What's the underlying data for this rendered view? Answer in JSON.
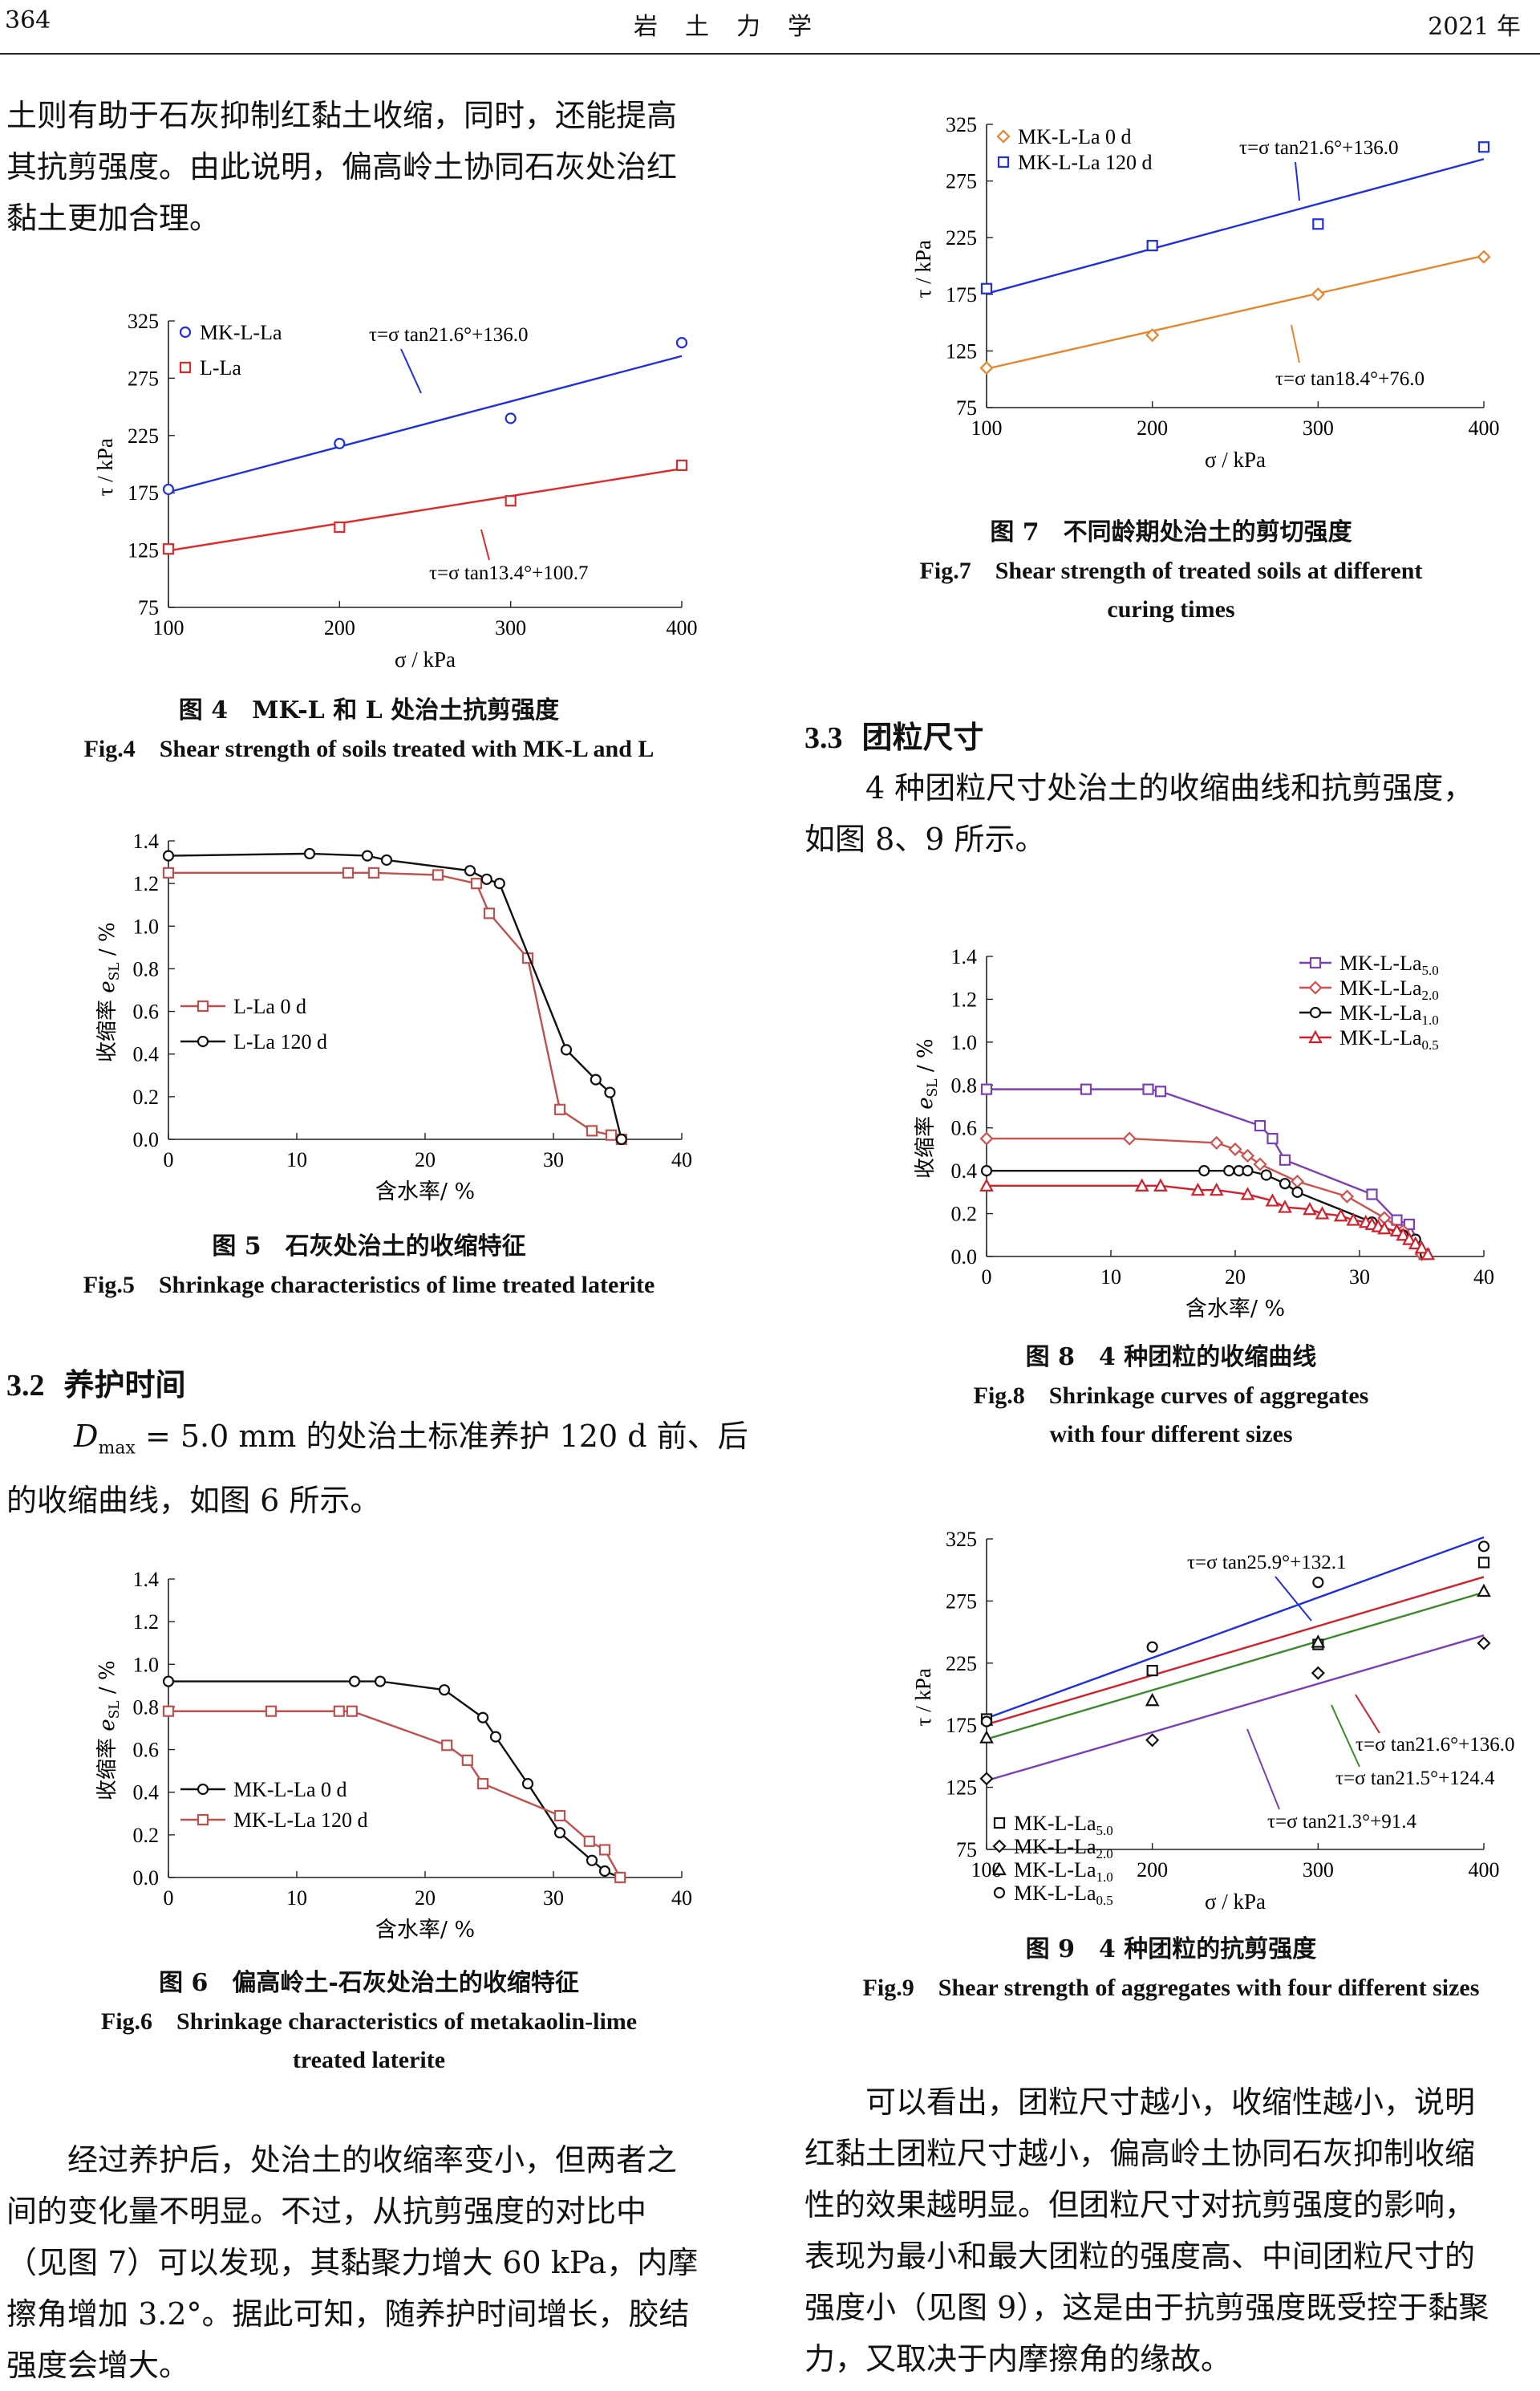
{
  "header": {
    "page_number": "364",
    "journal": "岩　土　力　学",
    "year": "2021 年"
  },
  "paragraphs": {
    "p1": [
      "土则有助于石灰抑制红黏土收缩，同时，还能提高",
      "其抗剪强度。由此说明，偏高岭土协同石灰处治红",
      "黏土更加合理。"
    ],
    "p2": [
      "= 5.0 mm 的处治土标准养护 120 d 前、后",
      "的收缩曲线，如图 6 所示。"
    ],
    "p2_prefix": "D",
    "p2_sub": "max",
    "p3": [
      "经过养护后，处治土的收缩率变小，但两者之",
      "间的变化量不明显。不过，从抗剪强度的对比中",
      "（见图 7）可以发现，其黏聚力增大 60 kPa，内摩",
      "擦角增加 3.2°。据此可知，随养护时间增长，胶结",
      "强度会增大。"
    ],
    "p4": [
      "4 种团粒尺寸处治土的收缩曲线和抗剪强度，",
      "如图 8、9 所示。"
    ],
    "p5": [
      "可以看出，团粒尺寸越小，收缩性越小，说明",
      "红黏土团粒尺寸越小，偏高岭土协同石灰抑制收缩",
      "性的效果越明显。但团粒尺寸对抗剪强度的影响，",
      "表现为最小和最大团粒的强度高、中间团粒尺寸的",
      "强度小（见图 9），这是由于抗剪强度既受控于黏聚",
      "力，又取决于内摩擦角的缘故。"
    ]
  },
  "sections": {
    "s32": {
      "number": "3.2",
      "title": "养护时间"
    },
    "s33": {
      "number": "3.3",
      "title": "团粒尺寸"
    }
  },
  "captions": {
    "fig4": {
      "zh": "图 4　MK-L 和 L 处治土抗剪强度",
      "en": [
        "Fig.4　Shear strength of soils treated with MK-L and L"
      ]
    },
    "fig5": {
      "zh": "图 5　石灰处治土的收缩特征",
      "en": [
        "Fig.5　Shrinkage characteristics of lime treated laterite"
      ]
    },
    "fig6": {
      "zh": "图 6　偏高岭土-石灰处治土的收缩特征",
      "en": [
        "Fig.6　Shrinkage characteristics of metakaolin-lime",
        "treated laterite"
      ]
    },
    "fig7": {
      "zh": "图 7　不同龄期处治土的剪切强度",
      "en": [
        "Fig.7　Shear strength of treated soils at different",
        "curing times"
      ]
    },
    "fig8": {
      "zh": "图 8　4 种团粒的收缩曲线",
      "en": [
        "Fig.8　Shrinkage curves of aggregates",
        "with four different sizes"
      ]
    },
    "fig9": {
      "zh": "图 9　4 种团粒的抗剪强度",
      "en": [
        "Fig.9　Shear strength of aggregates with four different sizes"
      ]
    }
  },
  "chart_data": [
    {
      "id": "fig4",
      "type": "scatter",
      "xlabel": "σ / kPa",
      "ylabel": "τ / kPa",
      "xlim": [
        100,
        400
      ],
      "ylim": [
        75,
        325
      ],
      "xticks": [
        100,
        200,
        300,
        400
      ],
      "yticks": [
        75,
        125,
        175,
        225,
        275,
        325
      ],
      "legend": "top-left",
      "series": [
        {
          "name": "MK-L-La",
          "marker": "circle",
          "color": "#1f2fe0",
          "x": [
            100,
            200,
            300,
            400
          ],
          "y": [
            178,
            218,
            240,
            306
          ],
          "fit": {
            "label": "τ=σ tan21.6°+136.0",
            "slope_deg": 21.6,
            "intercept": 136.0
          }
        },
        {
          "name": "L-La",
          "marker": "square",
          "color": "#e02a2a",
          "x": [
            100,
            200,
            300,
            400
          ],
          "y": [
            126,
            145,
            168,
            199
          ],
          "fit": {
            "label": "τ=σ tan13.4°+100.7",
            "slope_deg": 13.4,
            "intercept": 100.7
          }
        }
      ]
    },
    {
      "id": "fig5",
      "type": "line",
      "xlabel": "含水率/ %",
      "ylabel": "收缩率 e_SL / %",
      "xlim": [
        0,
        40
      ],
      "ylim": [
        0,
        1.4
      ],
      "xticks": [
        0,
        10,
        20,
        30,
        40
      ],
      "yticks": [
        0.0,
        0.2,
        0.4,
        0.6,
        0.8,
        1.0,
        1.2,
        1.4
      ],
      "legend": "middle-left",
      "series": [
        {
          "name": "L-La 0 d",
          "marker": "square",
          "color": "#c0504d",
          "x": [
            0,
            14,
            16,
            21,
            24,
            25,
            28,
            30.5,
            33,
            34.5,
            35.3
          ],
          "y": [
            1.25,
            1.25,
            1.25,
            1.24,
            1.2,
            1.06,
            0.85,
            0.14,
            0.04,
            0.02,
            0.0
          ]
        },
        {
          "name": "L-La 120 d",
          "marker": "circle",
          "color": "#111111",
          "x": [
            0,
            11,
            15.5,
            17,
            23.5,
            24.8,
            25.8,
            31,
            33.3,
            34.4,
            35.3
          ],
          "y": [
            1.33,
            1.34,
            1.33,
            1.31,
            1.26,
            1.22,
            1.2,
            0.42,
            0.28,
            0.22,
            0.0
          ]
        }
      ]
    },
    {
      "id": "fig6",
      "type": "line",
      "xlabel": "含水率/ %",
      "ylabel": "收缩率 e_SL / %",
      "xlim": [
        0,
        40
      ],
      "ylim": [
        0,
        1.4
      ],
      "xticks": [
        0,
        10,
        20,
        30,
        40
      ],
      "yticks": [
        0.0,
        0.2,
        0.4,
        0.6,
        0.8,
        1.0,
        1.2,
        1.4
      ],
      "legend": "bottom-left",
      "series": [
        {
          "name": "MK-L-La 0 d",
          "marker": "circle",
          "color": "#111111",
          "x": [
            0,
            14.5,
            16.5,
            21.5,
            24.5,
            25.5,
            28,
            30.5,
            33,
            34,
            35.2
          ],
          "y": [
            0.92,
            0.92,
            0.92,
            0.88,
            0.75,
            0.66,
            0.44,
            0.21,
            0.08,
            0.03,
            0.0
          ]
        },
        {
          "name": "MK-L-La 120 d",
          "marker": "square",
          "color": "#c0504d",
          "x": [
            0,
            8,
            13.3,
            14.3,
            21.7,
            23.3,
            24.5,
            30.5,
            32.8,
            34,
            35.2
          ],
          "y": [
            0.78,
            0.78,
            0.78,
            0.78,
            0.62,
            0.55,
            0.44,
            0.29,
            0.17,
            0.13,
            0.0
          ]
        }
      ]
    },
    {
      "id": "fig7",
      "type": "scatter",
      "xlabel": "σ / kPa",
      "ylabel": "τ / kPa",
      "xlim": [
        100,
        400
      ],
      "ylim": [
        75,
        325
      ],
      "xticks": [
        100,
        200,
        300,
        400
      ],
      "yticks": [
        75,
        125,
        175,
        225,
        275,
        325
      ],
      "legend": "top-left",
      "series": [
        {
          "name": "MK-L-La 0 d",
          "marker": "diamond",
          "color": "#e8852a",
          "x": [
            100,
            200,
            300,
            400
          ],
          "y": [
            110,
            139,
            175,
            208
          ],
          "fit": {
            "label": "τ=σ tan18.4°+76.0",
            "slope_deg": 18.4,
            "intercept": 76.0
          }
        },
        {
          "name": "MK-L-La 120 d",
          "marker": "square",
          "color": "#1f2fe0",
          "x": [
            100,
            200,
            300,
            400
          ],
          "y": [
            180,
            218,
            237,
            305
          ],
          "fit": {
            "label": "τ=σ tan21.6°+136.0",
            "slope_deg": 21.6,
            "intercept": 136.0
          }
        }
      ]
    },
    {
      "id": "fig8",
      "type": "line",
      "xlabel": "含水率/ %",
      "ylabel": "收缩率 e_SL / %",
      "xlim": [
        0,
        40
      ],
      "ylim": [
        0,
        1.4
      ],
      "xticks": [
        0,
        10,
        20,
        30,
        40
      ],
      "yticks": [
        0.0,
        0.2,
        0.4,
        0.6,
        0.8,
        1.0,
        1.2,
        1.4
      ],
      "legend": "top-right",
      "series": [
        {
          "name": "MK-L-La",
          "subscript": "5.0",
          "marker": "square",
          "color": "#7b3fb5",
          "x": [
            0,
            8,
            13,
            14,
            22,
            23,
            24,
            31,
            33,
            34,
            35.2
          ],
          "y": [
            0.78,
            0.78,
            0.78,
            0.77,
            0.61,
            0.55,
            0.45,
            0.29,
            0.17,
            0.15,
            0.01
          ]
        },
        {
          "name": "MK-L-La",
          "subscript": "2.0",
          "marker": "diamond",
          "color": "#d0504d",
          "x": [
            0,
            11.5,
            18.5,
            20,
            21,
            22,
            25,
            29,
            32,
            33.5,
            35
          ],
          "y": [
            0.55,
            0.55,
            0.53,
            0.5,
            0.47,
            0.43,
            0.35,
            0.28,
            0.18,
            0.12,
            0.01
          ]
        },
        {
          "name": "MK-L-La",
          "subscript": "1.0",
          "marker": "circle",
          "color": "#111111",
          "x": [
            0,
            17.5,
            19.5,
            20.3,
            21,
            22.5,
            24,
            25,
            31,
            33.5,
            34.5,
            35.3
          ],
          "y": [
            0.4,
            0.4,
            0.4,
            0.4,
            0.4,
            0.38,
            0.34,
            0.3,
            0.16,
            0.1,
            0.08,
            0.01
          ]
        },
        {
          "name": "MK-L-La",
          "subscript": "0.5",
          "marker": "triangle",
          "color": "#d0202a",
          "x": [
            0,
            12.5,
            14,
            17,
            18.5,
            21,
            23,
            24,
            26,
            27,
            28.5,
            29.5,
            30.5,
            31,
            31.5,
            32,
            33,
            33.5,
            34,
            34.5,
            35,
            35.5
          ],
          "y": [
            0.33,
            0.33,
            0.33,
            0.31,
            0.31,
            0.29,
            0.26,
            0.23,
            0.22,
            0.2,
            0.19,
            0.17,
            0.16,
            0.15,
            0.14,
            0.13,
            0.12,
            0.1,
            0.08,
            0.06,
            0.04,
            0.01
          ]
        }
      ]
    },
    {
      "id": "fig9",
      "type": "scatter",
      "xlabel": "σ / kPa",
      "ylabel": "τ / kPa",
      "xlim": [
        100,
        400
      ],
      "ylim": [
        75,
        325
      ],
      "xticks": [
        100,
        200,
        300,
        400
      ],
      "yticks": [
        75,
        125,
        175,
        225,
        275,
        325
      ],
      "legend": "bottom-left",
      "series": [
        {
          "name": "MK-L-La",
          "subscript": "5.0",
          "marker": "square",
          "color": "#111111",
          "x": [
            100,
            200,
            300,
            400
          ],
          "y": [
            180,
            219,
            240,
            306
          ]
        },
        {
          "name": "MK-L-La",
          "subscript": "2.0",
          "marker": "diamond",
          "color": "#111111",
          "x": [
            100,
            200,
            300,
            400
          ],
          "y": [
            132,
            163,
            217,
            241
          ]
        },
        {
          "name": "MK-L-La",
          "subscript": "1.0",
          "marker": "triangle",
          "color": "#111111",
          "x": [
            100,
            200,
            300,
            400
          ],
          "y": [
            165,
            195,
            242,
            283
          ]
        },
        {
          "name": "MK-L-La",
          "subscript": "0.5",
          "marker": "circle",
          "color": "#111111",
          "x": [
            100,
            200,
            300,
            400
          ],
          "y": [
            178,
            238,
            290,
            319
          ]
        }
      ],
      "fits": [
        {
          "label": "τ=σ tan25.9°+132.1",
          "slope_deg": 25.9,
          "intercept": 132.1,
          "color": "#1f2fe0"
        },
        {
          "label": "τ=σ tan21.6°+136.0",
          "slope_deg": 21.6,
          "intercept": 136.0,
          "color": "#d0202a"
        },
        {
          "label": "τ=σ tan21.5°+124.4",
          "slope_deg": 21.5,
          "intercept": 124.4,
          "color": "#3a8a2a"
        },
        {
          "label": "τ=σ tan21.3°+91.4",
          "slope_deg": 21.3,
          "intercept": 91.4,
          "color": "#7b3fb5"
        }
      ]
    }
  ]
}
